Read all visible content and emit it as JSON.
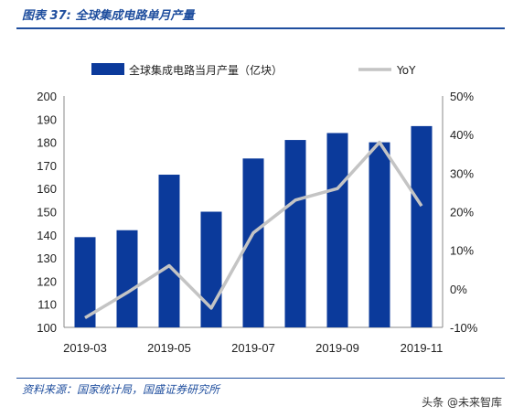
{
  "figure": {
    "title": "图表 37:  全球集成电路单月产量",
    "source": "资料来源：国家统计局，国盛证券研究所",
    "watermark": "头条 @未来智库"
  },
  "colors": {
    "bar": "#0b3a9b",
    "line": "#c4c4c4",
    "title_blue": "#1f4e9e"
  },
  "chart_data": {
    "type": "bar",
    "title": "",
    "categories": [
      "2019-03",
      "2019-04",
      "2019-05",
      "2019-06",
      "2019-07",
      "2019-08",
      "2019-09",
      "2019-10",
      "2019-11"
    ],
    "x_tick_labels": [
      "2019-03",
      "2019-05",
      "2019-07",
      "2019-09",
      "2019-11"
    ],
    "series": [
      {
        "name": "全球集成电路当月产量（亿块）",
        "type": "bar",
        "axis": "left",
        "values": [
          139,
          142,
          166,
          150,
          173,
          181,
          184,
          180,
          187
        ]
      },
      {
        "name": "YoY",
        "type": "line",
        "axis": "right",
        "unit": "%",
        "values": [
          -7.5,
          -1.0,
          6.0,
          -5.0,
          14.5,
          23.0,
          26.0,
          38.0,
          21.5
        ]
      }
    ],
    "ylim_left": [
      100,
      200
    ],
    "yticks_left": [
      100,
      110,
      120,
      130,
      140,
      150,
      160,
      170,
      180,
      190,
      200
    ],
    "ylim_right": [
      -10,
      50
    ],
    "yticks_right": [
      "-10%",
      "0%",
      "10%",
      "20%",
      "30%",
      "40%",
      "50%"
    ],
    "grid": false,
    "legend_position": "top"
  }
}
